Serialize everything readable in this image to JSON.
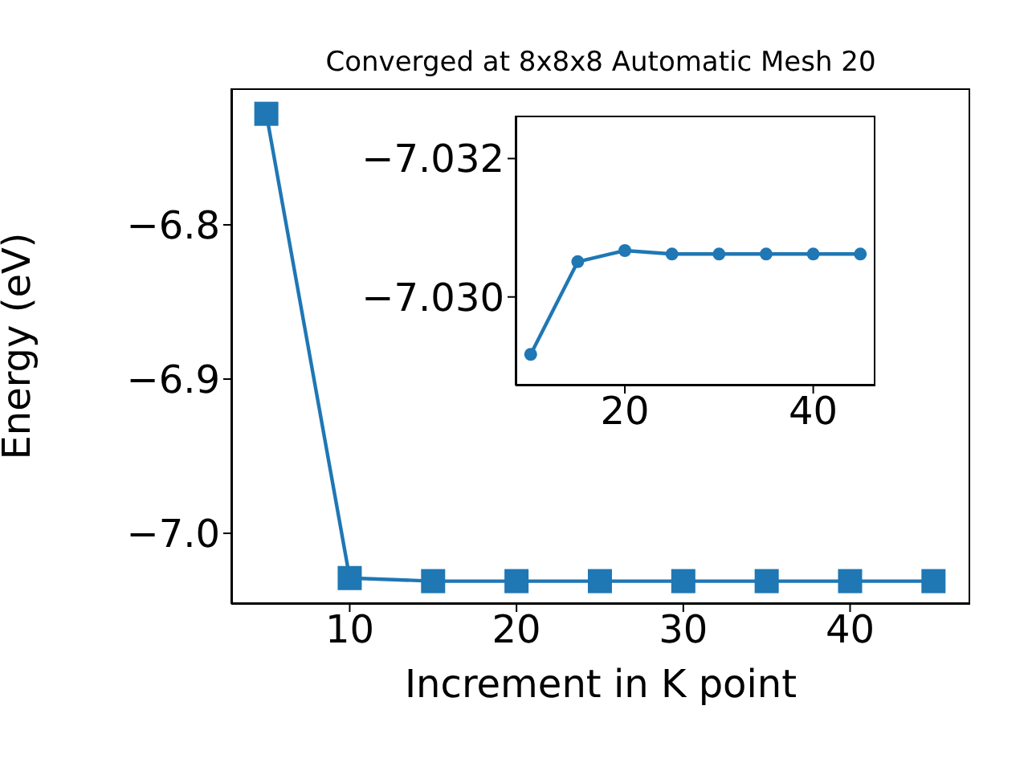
{
  "chart_data": [
    {
      "type": "line",
      "title": "Converged at 8x8x8 Automatic Mesh 20",
      "xlabel": "Increment in K point",
      "ylabel": "Energy (eV)",
      "x": [
        5,
        10,
        15,
        20,
        25,
        30,
        35,
        40,
        45
      ],
      "series": [
        {
          "color": "#1f77b4",
          "values": [
            -6.728,
            -7.029,
            -7.031,
            -7.031,
            -7.031,
            -7.031,
            -7.031,
            -7.031,
            -7.031
          ]
        }
      ],
      "xlim": [
        2.9,
        47.2
      ],
      "xticks": [
        10,
        20,
        30,
        40
      ],
      "ylim": [
        -7.0458,
        -6.7115
      ],
      "yticks": [
        {
          "value": -7.0,
          "label": "−7.0"
        },
        {
          "value": -6.9,
          "label": "−6.9"
        },
        {
          "value": -6.8,
          "label": "−6.8"
        }
      ],
      "marker": "square",
      "line_style": "solid",
      "grid": false,
      "legend": false
    },
    {
      "type": "line",
      "x": [
        10,
        15,
        20,
        25,
        30,
        35,
        40,
        45
      ],
      "series": [
        {
          "color": "#1f77b4",
          "values": [
            -7.02917,
            -7.03051,
            -7.03067,
            -7.03062,
            -7.03062,
            -7.03062,
            -7.03062,
            -7.03062
          ]
        }
      ],
      "xlim": [
        8.4,
        46.6
      ],
      "xticks": [
        20,
        40
      ],
      "ylim": [
        -7.02872,
        -7.03262
      ],
      "yticks": [
        {
          "value": -7.03,
          "label": "−7.030"
        },
        {
          "value": -7.032,
          "label": "−7.032"
        }
      ],
      "marker": "circle",
      "line_style": "solid",
      "grid": false,
      "legend": false
    }
  ]
}
